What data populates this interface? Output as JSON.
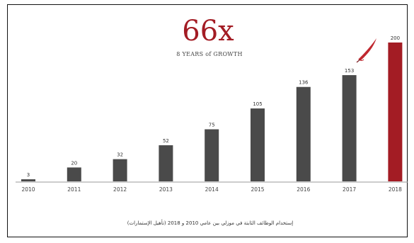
{
  "chart_data": {
    "type": "bar",
    "title": "66x",
    "subtitle": "8 YEARS of GROWTH",
    "xlabel": "",
    "ylabel": "",
    "categories": [
      "2010",
      "2011",
      "2012",
      "2013",
      "2014",
      "2015",
      "2016",
      "2017",
      "2018"
    ],
    "values": [
      3,
      20,
      32,
      52,
      75,
      105,
      136,
      153,
      200
    ],
    "value_labels": [
      "3",
      "20",
      "32",
      "52",
      "75",
      "105",
      "136",
      "153",
      "200"
    ],
    "ylim": [
      0,
      200
    ],
    "grid": false,
    "legend": "none",
    "highlight_index": 8,
    "footnote": "إستخدام الوظائف الثابتة في موزلي بين عامي 2010 و 2018 (تأهيل الإستمارات)"
  },
  "colors": {
    "bar": "#4a4a4a",
    "highlight_bar": "#a31c24",
    "title": "#a31c24",
    "baseline": "#999999",
    "pen_icon": "#c0282f"
  }
}
